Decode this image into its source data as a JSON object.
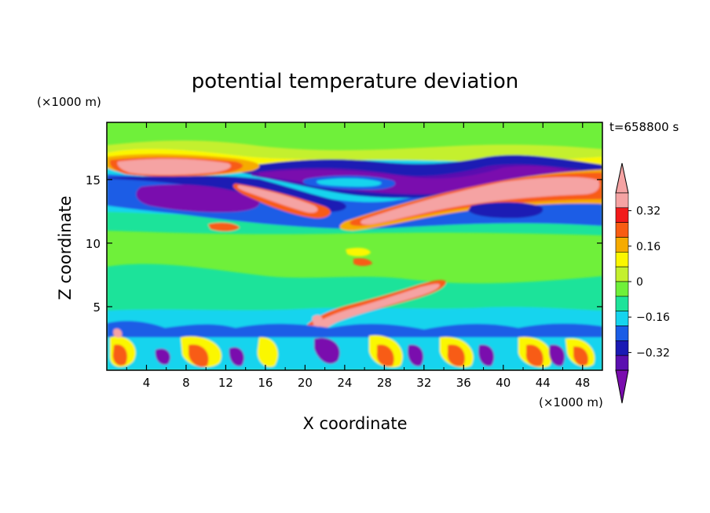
{
  "chart_data": {
    "type": "heatmap",
    "title": "potential temperature deviation",
    "xlabel": "X coordinate",
    "ylabel": "Z coordinate",
    "x_unit": "(×1000 m)",
    "y_unit": "(×1000 m)",
    "time_label": "t=658800 s",
    "xlim": [
      0,
      50
    ],
    "ylim": [
      0,
      19.5
    ],
    "x_ticks": [
      "4",
      "8",
      "12",
      "16",
      "20",
      "24",
      "28",
      "32",
      "36",
      "40",
      "44",
      "48"
    ],
    "y_ticks": [
      "5",
      "10",
      "15"
    ],
    "colorbar": {
      "levels": [
        -0.48,
        -0.4,
        -0.32,
        -0.24,
        -0.16,
        -0.08,
        0,
        0.08,
        0.16,
        0.24,
        0.32,
        0.4,
        0.48
      ],
      "labels": [
        "0.32",
        "0.16",
        "0",
        "−0.16",
        "−0.32"
      ],
      "colors": [
        "#7a0dae",
        "#5a0fb0",
        "#1a1ab4",
        "#1a5de6",
        "#16d4ee",
        "#1de39a",
        "#6ff03a",
        "#c4f02e",
        "#fbf700",
        "#f6ab00",
        "#f85c12",
        "#f21a1a",
        "#f5a3a3",
        "#f5a3a3"
      ]
    }
  }
}
